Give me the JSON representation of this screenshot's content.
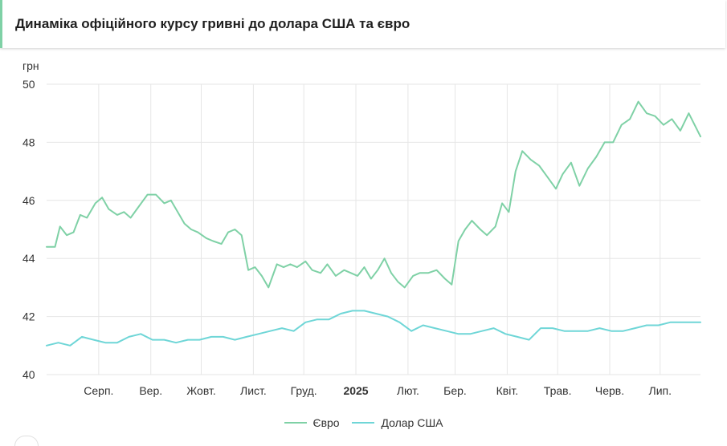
{
  "header": {
    "title": "Динаміка офіційного курсу гривні до долара США та євро"
  },
  "chart_data": {
    "type": "line",
    "title": "Динаміка офіційного курсу гривні до долара США та євро",
    "y_unit": "грн",
    "y_ticks": [
      40,
      42,
      44,
      46,
      48,
      50
    ],
    "ylim": [
      40,
      50
    ],
    "x_range": [
      "2024-07-01",
      "2025-07-25"
    ],
    "x_ticks": [
      {
        "label": "Серп.",
        "date": "2024-08-01",
        "bold": false
      },
      {
        "label": "Вер.",
        "date": "2024-09-01",
        "bold": false
      },
      {
        "label": "Жовт.",
        "date": "2024-10-01",
        "bold": false
      },
      {
        "label": "Лист.",
        "date": "2024-11-01",
        "bold": false
      },
      {
        "label": "Груд.",
        "date": "2024-12-01",
        "bold": false
      },
      {
        "label": "2025",
        "date": "2025-01-01",
        "bold": true
      },
      {
        "label": "Лют.",
        "date": "2025-02-01",
        "bold": false
      },
      {
        "label": "Бер.",
        "date": "2025-03-01",
        "bold": false
      },
      {
        "label": "Квіт.",
        "date": "2025-04-01",
        "bold": false
      },
      {
        "label": "Трав.",
        "date": "2025-05-01",
        "bold": false
      },
      {
        "label": "Черв.",
        "date": "2025-06-01",
        "bold": false
      },
      {
        "label": "Лип.",
        "date": "2025-07-01",
        "bold": false
      }
    ],
    "grid": true,
    "legend_position": "bottom-center",
    "series": [
      {
        "name": "Євро",
        "color": "#7fd1a6",
        "x": [
          "2024-07-01",
          "2024-07-06",
          "2024-07-09",
          "2024-07-13",
          "2024-07-17",
          "2024-07-21",
          "2024-07-25",
          "2024-07-30",
          "2024-08-03",
          "2024-08-07",
          "2024-08-12",
          "2024-08-16",
          "2024-08-20",
          "2024-08-25",
          "2024-08-30",
          "2024-09-04",
          "2024-09-09",
          "2024-09-13",
          "2024-09-17",
          "2024-09-21",
          "2024-09-25",
          "2024-09-29",
          "2024-10-04",
          "2024-10-08",
          "2024-10-13",
          "2024-10-17",
          "2024-10-21",
          "2024-10-25",
          "2024-10-29",
          "2024-11-02",
          "2024-11-06",
          "2024-11-10",
          "2024-11-15",
          "2024-11-19",
          "2024-11-23",
          "2024-11-27",
          "2024-12-02",
          "2024-12-06",
          "2024-12-11",
          "2024-12-15",
          "2024-12-20",
          "2024-12-25",
          "2024-12-29",
          "2025-01-02",
          "2025-01-06",
          "2025-01-10",
          "2025-01-14",
          "2025-01-18",
          "2025-01-22",
          "2025-01-26",
          "2025-01-30",
          "2025-02-04",
          "2025-02-08",
          "2025-02-13",
          "2025-02-18",
          "2025-02-23",
          "2025-02-27",
          "2025-03-03",
          "2025-03-07",
          "2025-03-11",
          "2025-03-16",
          "2025-03-20",
          "2025-03-25",
          "2025-03-29",
          "2025-04-02",
          "2025-04-06",
          "2025-04-10",
          "2025-04-15",
          "2025-04-20",
          "2025-04-25",
          "2025-04-30",
          "2025-05-04",
          "2025-05-09",
          "2025-05-14",
          "2025-05-19",
          "2025-05-24",
          "2025-05-29",
          "2025-06-03",
          "2025-06-08",
          "2025-06-13",
          "2025-06-18",
          "2025-06-23",
          "2025-06-28",
          "2025-07-03",
          "2025-07-08",
          "2025-07-13",
          "2025-07-18",
          "2025-07-25"
        ],
        "values": [
          44.4,
          44.4,
          45.1,
          44.8,
          44.9,
          45.5,
          45.4,
          45.9,
          46.1,
          45.7,
          45.5,
          45.6,
          45.4,
          45.8,
          46.2,
          46.2,
          45.9,
          46.0,
          45.6,
          45.2,
          45.0,
          44.9,
          44.7,
          44.6,
          44.5,
          44.9,
          45.0,
          44.8,
          43.6,
          43.7,
          43.4,
          43.0,
          43.8,
          43.7,
          43.8,
          43.7,
          43.9,
          43.6,
          43.5,
          43.8,
          43.4,
          43.6,
          43.5,
          43.4,
          43.7,
          43.3,
          43.6,
          44.0,
          43.5,
          43.2,
          43.0,
          43.4,
          43.5,
          43.5,
          43.6,
          43.3,
          43.1,
          44.6,
          45.0,
          45.3,
          45.0,
          44.8,
          45.1,
          45.9,
          45.6,
          47.0,
          47.7,
          47.4,
          47.2,
          46.8,
          46.4,
          46.9,
          47.3,
          46.5,
          47.1,
          47.5,
          48.0,
          48.0,
          48.6,
          48.8,
          49.4,
          49.0,
          48.9,
          48.6,
          48.8,
          48.4,
          49.0,
          48.2
        ]
      },
      {
        "name": "Долар США",
        "color": "#6fd6d7",
        "x": [
          "2024-07-01",
          "2024-07-08",
          "2024-07-15",
          "2024-07-22",
          "2024-07-29",
          "2024-08-05",
          "2024-08-12",
          "2024-08-19",
          "2024-08-26",
          "2024-09-02",
          "2024-09-09",
          "2024-09-16",
          "2024-09-23",
          "2024-09-30",
          "2024-10-07",
          "2024-10-14",
          "2024-10-21",
          "2024-10-28",
          "2024-11-04",
          "2024-11-11",
          "2024-11-18",
          "2024-11-25",
          "2024-12-02",
          "2024-12-09",
          "2024-12-16",
          "2024-12-23",
          "2024-12-30",
          "2025-01-06",
          "2025-01-13",
          "2025-01-20",
          "2025-01-27",
          "2025-02-03",
          "2025-02-10",
          "2025-02-17",
          "2025-02-24",
          "2025-03-03",
          "2025-03-10",
          "2025-03-17",
          "2025-03-24",
          "2025-03-31",
          "2025-04-07",
          "2025-04-14",
          "2025-04-21",
          "2025-04-28",
          "2025-05-05",
          "2025-05-12",
          "2025-05-19",
          "2025-05-26",
          "2025-06-02",
          "2025-06-09",
          "2025-06-16",
          "2025-06-23",
          "2025-06-30",
          "2025-07-07",
          "2025-07-14",
          "2025-07-25"
        ],
        "values": [
          41.0,
          41.1,
          41.0,
          41.3,
          41.2,
          41.1,
          41.1,
          41.3,
          41.4,
          41.2,
          41.2,
          41.1,
          41.2,
          41.2,
          41.3,
          41.3,
          41.2,
          41.3,
          41.4,
          41.5,
          41.6,
          41.5,
          41.8,
          41.9,
          41.9,
          42.1,
          42.2,
          42.2,
          42.1,
          42.0,
          41.8,
          41.5,
          41.7,
          41.6,
          41.5,
          41.4,
          41.4,
          41.5,
          41.6,
          41.4,
          41.3,
          41.2,
          41.6,
          41.6,
          41.5,
          41.5,
          41.5,
          41.6,
          41.5,
          41.5,
          41.6,
          41.7,
          41.7,
          41.8,
          41.8,
          41.8
        ]
      }
    ]
  }
}
